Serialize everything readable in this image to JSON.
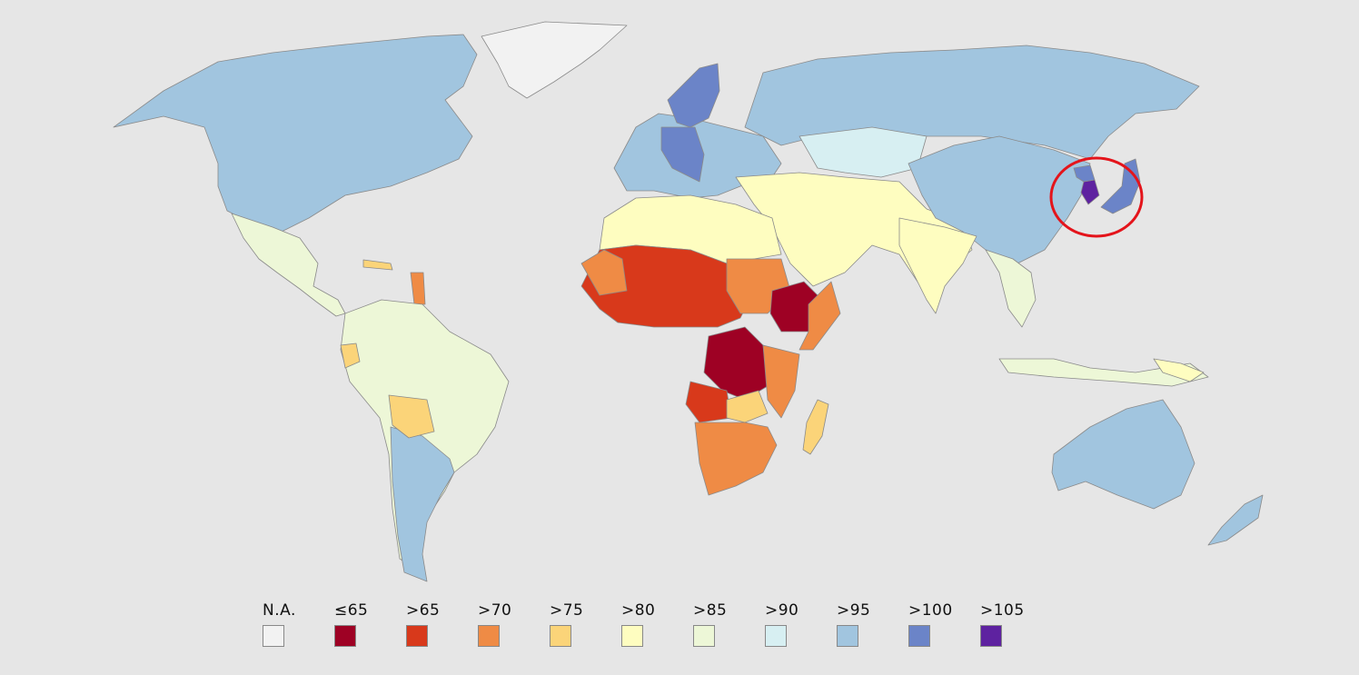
{
  "colors": {
    "na": "#f2f2f2",
    "le65": "#9e0124",
    "gt65": "#d8391b",
    "gt70": "#ef8b45",
    "gt75": "#fbd479",
    "gt80": "#fefdc0",
    "gt85": "#edf7d7",
    "gt90": "#d7eff2",
    "gt95": "#a1c5df",
    "gt100": "#6b84c8",
    "gt105": "#5e22a0",
    "highlight": "#e4141b"
  },
  "legend": [
    {
      "label": "N.A.",
      "color": "#f2f2f2"
    },
    {
      "label": "≤65",
      "color": "#9e0124"
    },
    {
      "label": ">65",
      "color": "#d8391b"
    },
    {
      "label": ">70",
      "color": "#ef8b45"
    },
    {
      "label": ">75",
      "color": "#fbd479"
    },
    {
      "label": ">80",
      "color": "#fefdc0"
    },
    {
      "label": ">85",
      "color": "#edf7d7"
    },
    {
      "label": ">90",
      "color": "#d7eff2"
    },
    {
      "label": ">95",
      "color": "#a1c5df"
    },
    {
      "label": ">100",
      "color": "#6b84c8"
    },
    {
      "label": ">105",
      "color": "#5e22a0"
    }
  ]
}
